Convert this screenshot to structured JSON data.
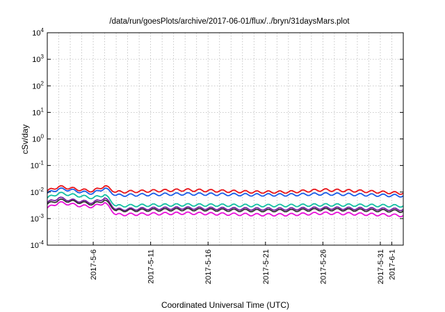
{
  "chart_data": {
    "type": "line",
    "title": "/data/run/goesPlots/archive/2017-06-01/flux/../bryn/31daysMars.plot",
    "xlabel": "Coordinated Universal Time (UTC)",
    "ylabel": "cSv/day",
    "y_scale": "log",
    "ylim": [
      0.0001,
      10000
    ],
    "y_ticks": [
      {
        "exp": "-4",
        "value": 0.0001
      },
      {
        "exp": "-3",
        "value": 0.001
      },
      {
        "exp": "-2",
        "value": 0.01
      },
      {
        "exp": "-1",
        "value": 0.1
      },
      {
        "exp": "0",
        "value": 1
      },
      {
        "exp": "1",
        "value": 10
      },
      {
        "exp": "2",
        "value": 100
      },
      {
        "exp": "3",
        "value": 1000
      },
      {
        "exp": "4",
        "value": 10000
      }
    ],
    "xlim": [
      "2017-05-02",
      "2017-06-02"
    ],
    "x_ticks": [
      "2017-5-6",
      "2017-5-11",
      "2017-5-16",
      "2017-5-21",
      "2017-5-26",
      "2017-5-31",
      "2017-6-1"
    ],
    "x_tick_dates": [
      "2017-05-06",
      "2017-05-11",
      "2017-05-16",
      "2017-05-21",
      "2017-05-26",
      "2017-05-31",
      "2017-06-01"
    ],
    "grid": true,
    "legend": "none",
    "series": [
      {
        "color": "#e8141a",
        "values": [
          [
            "2017-05-02",
            0.011
          ],
          [
            "2017-05-03",
            0.016
          ],
          [
            "2017-05-04",
            0.014
          ],
          [
            "2017-05-05",
            0.012
          ],
          [
            "2017-05-06",
            0.011
          ],
          [
            "2017-05-07",
            0.017
          ],
          [
            "2017-05-08",
            0.01
          ],
          [
            "2017-05-11",
            0.011
          ],
          [
            "2017-05-14",
            0.012
          ],
          [
            "2017-05-17",
            0.011
          ],
          [
            "2017-05-20",
            0.01
          ],
          [
            "2017-05-23",
            0.01
          ],
          [
            "2017-05-26",
            0.012
          ],
          [
            "2017-05-29",
            0.011
          ],
          [
            "2017-06-02",
            0.009
          ]
        ]
      },
      {
        "color": "#1a5ce8",
        "values": [
          [
            "2017-05-02",
            0.009
          ],
          [
            "2017-05-03",
            0.013
          ],
          [
            "2017-05-04",
            0.012
          ],
          [
            "2017-05-05",
            0.01
          ],
          [
            "2017-05-06",
            0.009
          ],
          [
            "2017-05-07",
            0.014
          ],
          [
            "2017-05-08",
            0.0075
          ],
          [
            "2017-05-11",
            0.008
          ],
          [
            "2017-05-14",
            0.0085
          ],
          [
            "2017-05-17",
            0.0082
          ],
          [
            "2017-05-20",
            0.0078
          ],
          [
            "2017-05-23",
            0.0078
          ],
          [
            "2017-05-26",
            0.0085
          ],
          [
            "2017-05-29",
            0.008
          ],
          [
            "2017-06-02",
            0.0072
          ]
        ]
      },
      {
        "color": "#12bfa2",
        "values": [
          [
            "2017-05-02",
            0.006
          ],
          [
            "2017-05-03",
            0.009
          ],
          [
            "2017-05-04",
            0.008
          ],
          [
            "2017-05-05",
            0.007
          ],
          [
            "2017-05-06",
            0.006
          ],
          [
            "2017-05-07",
            0.008
          ],
          [
            "2017-05-08",
            0.003
          ],
          [
            "2017-05-11",
            0.0032
          ],
          [
            "2017-05-14",
            0.0033
          ],
          [
            "2017-05-17",
            0.0032
          ],
          [
            "2017-05-20",
            0.0031
          ],
          [
            "2017-05-23",
            0.0031
          ],
          [
            "2017-05-26",
            0.0033
          ],
          [
            "2017-05-29",
            0.0032
          ],
          [
            "2017-06-02",
            0.003
          ]
        ]
      },
      {
        "color": "#7a1fa2",
        "values": [
          [
            "2017-05-02",
            0.004
          ],
          [
            "2017-05-03",
            0.006
          ],
          [
            "2017-05-04",
            0.005
          ],
          [
            "2017-05-05",
            0.0045
          ],
          [
            "2017-05-06",
            0.004
          ],
          [
            "2017-05-07",
            0.006
          ],
          [
            "2017-05-08",
            0.0022
          ],
          [
            "2017-05-11",
            0.0024
          ],
          [
            "2017-05-14",
            0.0025
          ],
          [
            "2017-05-17",
            0.0024
          ],
          [
            "2017-05-20",
            0.0023
          ],
          [
            "2017-05-23",
            0.0023
          ],
          [
            "2017-05-26",
            0.0025
          ],
          [
            "2017-05-29",
            0.0024
          ],
          [
            "2017-06-02",
            0.0022
          ]
        ]
      },
      {
        "color": "#333333",
        "values": [
          [
            "2017-05-02",
            0.0035
          ],
          [
            "2017-05-03",
            0.005
          ],
          [
            "2017-05-04",
            0.0045
          ],
          [
            "2017-05-05",
            0.004
          ],
          [
            "2017-05-06",
            0.0035
          ],
          [
            "2017-05-07",
            0.005
          ],
          [
            "2017-05-08",
            0.002
          ],
          [
            "2017-05-11",
            0.0021
          ],
          [
            "2017-05-14",
            0.0022
          ],
          [
            "2017-05-17",
            0.0021
          ],
          [
            "2017-05-20",
            0.002
          ],
          [
            "2017-05-23",
            0.002
          ],
          [
            "2017-05-26",
            0.0022
          ],
          [
            "2017-05-29",
            0.0021
          ],
          [
            "2017-06-02",
            0.0019
          ]
        ]
      },
      {
        "color": "#e80fd8",
        "values": [
          [
            "2017-05-02",
            0.0025
          ],
          [
            "2017-05-03",
            0.004
          ],
          [
            "2017-05-04",
            0.0035
          ],
          [
            "2017-05-05",
            0.003
          ],
          [
            "2017-05-06",
            0.0028
          ],
          [
            "2017-05-07",
            0.004
          ],
          [
            "2017-05-08",
            0.0014
          ],
          [
            "2017-05-11",
            0.0015
          ],
          [
            "2017-05-14",
            0.0016
          ],
          [
            "2017-05-17",
            0.0015
          ],
          [
            "2017-05-20",
            0.0014
          ],
          [
            "2017-05-23",
            0.0014
          ],
          [
            "2017-05-26",
            0.0016
          ],
          [
            "2017-05-29",
            0.0015
          ],
          [
            "2017-06-02",
            0.0013
          ]
        ]
      }
    ]
  }
}
